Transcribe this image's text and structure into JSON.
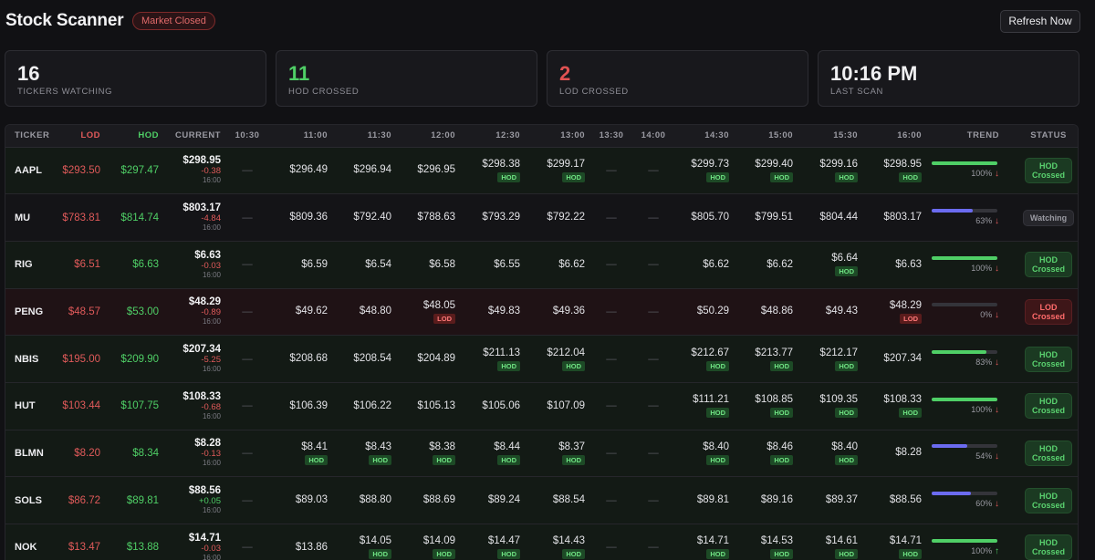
{
  "app": {
    "title": "Stock Scanner",
    "market_status": "Market Closed",
    "refresh_label": "Refresh Now"
  },
  "cards": [
    {
      "value": "16",
      "label": "Tickers Watching",
      "color": "default"
    },
    {
      "value": "11",
      "label": "HOD Crossed",
      "color": "green"
    },
    {
      "value": "2",
      "label": "LOD Crossed",
      "color": "red"
    },
    {
      "value": "10:16 PM",
      "label": "Last Scan",
      "color": "default"
    }
  ],
  "columns": [
    "TICKER",
    "LOD",
    "HOD",
    "CURRENT",
    "10:30",
    "11:00",
    "11:30",
    "12:00",
    "12:30",
    "13:00",
    "13:30",
    "14:00",
    "14:30",
    "15:00",
    "15:30",
    "16:00",
    "TREND",
    "STATUS"
  ],
  "empty_mark": "—",
  "rows": [
    {
      "ticker": "AAPL",
      "lod": "$293.50",
      "hod": "$297.47",
      "current": {
        "price": "$298.95",
        "change": "-0.38",
        "time": "16:00"
      },
      "slots": [
        null,
        {
          "p": "$296.49"
        },
        {
          "p": "$296.94"
        },
        {
          "p": "$296.95"
        },
        {
          "p": "$298.38",
          "tag": "HOD"
        },
        {
          "p": "$299.17",
          "tag": "HOD"
        },
        null,
        null,
        {
          "p": "$299.73",
          "tag": "HOD"
        },
        {
          "p": "$299.40",
          "tag": "HOD"
        },
        {
          "p": "$299.16",
          "tag": "HOD"
        },
        {
          "p": "$298.95",
          "tag": "HOD"
        }
      ],
      "trend": {
        "pct": 100,
        "label": "100%",
        "dir": "down",
        "color": "green"
      },
      "status": {
        "label": "HOD Crossed",
        "kind": "hod"
      }
    },
    {
      "ticker": "MU",
      "lod": "$783.81",
      "hod": "$814.74",
      "current": {
        "price": "$803.17",
        "change": "-4.84",
        "time": "16:00"
      },
      "slots": [
        null,
        {
          "p": "$809.36"
        },
        {
          "p": "$792.40"
        },
        {
          "p": "$788.63"
        },
        {
          "p": "$793.29"
        },
        {
          "p": "$792.22"
        },
        null,
        null,
        {
          "p": "$805.70"
        },
        {
          "p": "$799.51"
        },
        {
          "p": "$804.44"
        },
        {
          "p": "$803.17"
        }
      ],
      "trend": {
        "pct": 63,
        "label": "63%",
        "dir": "down",
        "color": "blue"
      },
      "status": {
        "label": "Watching",
        "kind": "watch"
      }
    },
    {
      "ticker": "RIG",
      "lod": "$6.51",
      "hod": "$6.63",
      "current": {
        "price": "$6.63",
        "change": "-0.03",
        "time": "16:00"
      },
      "slots": [
        null,
        {
          "p": "$6.59"
        },
        {
          "p": "$6.54"
        },
        {
          "p": "$6.58"
        },
        {
          "p": "$6.55"
        },
        {
          "p": "$6.62"
        },
        null,
        null,
        {
          "p": "$6.62"
        },
        {
          "p": "$6.62"
        },
        {
          "p": "$6.64",
          "tag": "HOD"
        },
        {
          "p": "$6.63"
        }
      ],
      "trend": {
        "pct": 100,
        "label": "100%",
        "dir": "down",
        "color": "green"
      },
      "status": {
        "label": "HOD Crossed",
        "kind": "hod"
      }
    },
    {
      "ticker": "PENG",
      "lod": "$48.57",
      "hod": "$53.00",
      "current": {
        "price": "$48.29",
        "change": "-0.89",
        "time": "16:00"
      },
      "slots": [
        null,
        {
          "p": "$49.62"
        },
        {
          "p": "$48.80"
        },
        {
          "p": "$48.05",
          "tag": "LOD"
        },
        {
          "p": "$49.83"
        },
        {
          "p": "$49.36"
        },
        null,
        null,
        {
          "p": "$50.29"
        },
        {
          "p": "$48.86"
        },
        {
          "p": "$49.43"
        },
        {
          "p": "$48.29",
          "tag": "LOD"
        }
      ],
      "trend": {
        "pct": 0,
        "label": "0%",
        "dir": "down",
        "color": "green"
      },
      "status": {
        "label": "LOD Crossed",
        "kind": "lod"
      }
    },
    {
      "ticker": "NBIS",
      "lod": "$195.00",
      "hod": "$209.90",
      "current": {
        "price": "$207.34",
        "change": "-5.25",
        "time": "16:00"
      },
      "slots": [
        null,
        {
          "p": "$208.68"
        },
        {
          "p": "$208.54"
        },
        {
          "p": "$204.89"
        },
        {
          "p": "$211.13",
          "tag": "HOD"
        },
        {
          "p": "$212.04",
          "tag": "HOD"
        },
        null,
        null,
        {
          "p": "$212.67",
          "tag": "HOD"
        },
        {
          "p": "$213.77",
          "tag": "HOD"
        },
        {
          "p": "$212.17",
          "tag": "HOD"
        },
        {
          "p": "$207.34"
        }
      ],
      "trend": {
        "pct": 83,
        "label": "83%",
        "dir": "down",
        "color": "green"
      },
      "status": {
        "label": "HOD Crossed",
        "kind": "hod"
      }
    },
    {
      "ticker": "HUT",
      "lod": "$103.44",
      "hod": "$107.75",
      "current": {
        "price": "$108.33",
        "change": "-0.68",
        "time": "16:00"
      },
      "slots": [
        null,
        {
          "p": "$106.39"
        },
        {
          "p": "$106.22"
        },
        {
          "p": "$105.13"
        },
        {
          "p": "$105.06"
        },
        {
          "p": "$107.09"
        },
        null,
        null,
        {
          "p": "$111.21",
          "tag": "HOD"
        },
        {
          "p": "$108.85",
          "tag": "HOD"
        },
        {
          "p": "$109.35",
          "tag": "HOD"
        },
        {
          "p": "$108.33",
          "tag": "HOD"
        }
      ],
      "trend": {
        "pct": 100,
        "label": "100%",
        "dir": "down",
        "color": "green"
      },
      "status": {
        "label": "HOD Crossed",
        "kind": "hod"
      }
    },
    {
      "ticker": "BLMN",
      "lod": "$8.20",
      "hod": "$8.34",
      "current": {
        "price": "$8.28",
        "change": "-0.13",
        "time": "16:00"
      },
      "slots": [
        null,
        {
          "p": "$8.41",
          "tag": "HOD"
        },
        {
          "p": "$8.43",
          "tag": "HOD"
        },
        {
          "p": "$8.38",
          "tag": "HOD"
        },
        {
          "p": "$8.44",
          "tag": "HOD"
        },
        {
          "p": "$8.37",
          "tag": "HOD"
        },
        null,
        null,
        {
          "p": "$8.40",
          "tag": "HOD"
        },
        {
          "p": "$8.46",
          "tag": "HOD"
        },
        {
          "p": "$8.40",
          "tag": "HOD"
        },
        {
          "p": "$8.28"
        }
      ],
      "trend": {
        "pct": 54,
        "label": "54%",
        "dir": "down",
        "color": "blue"
      },
      "status": {
        "label": "HOD Crossed",
        "kind": "hod"
      }
    },
    {
      "ticker": "SOLS",
      "lod": "$86.72",
      "hod": "$89.81",
      "current": {
        "price": "$88.56",
        "change": "+0.05",
        "time": "16:00"
      },
      "slots": [
        null,
        {
          "p": "$89.03"
        },
        {
          "p": "$88.80"
        },
        {
          "p": "$88.69"
        },
        {
          "p": "$89.24"
        },
        {
          "p": "$88.54"
        },
        null,
        null,
        {
          "p": "$89.81"
        },
        {
          "p": "$89.16"
        },
        {
          "p": "$89.37"
        },
        {
          "p": "$88.56"
        }
      ],
      "trend": {
        "pct": 60,
        "label": "60%",
        "dir": "down",
        "color": "blue"
      },
      "status": {
        "label": "HOD Crossed",
        "kind": "hod"
      }
    },
    {
      "ticker": "NOK",
      "lod": "$13.47",
      "hod": "$13.88",
      "current": {
        "price": "$14.71",
        "change": "-0.03",
        "time": "16:00"
      },
      "slots": [
        null,
        {
          "p": "$13.86"
        },
        {
          "p": "$14.05",
          "tag": "HOD"
        },
        {
          "p": "$14.09",
          "tag": "HOD"
        },
        {
          "p": "$14.47",
          "tag": "HOD"
        },
        {
          "p": "$14.43",
          "tag": "HOD"
        },
        null,
        null,
        {
          "p": "$14.71",
          "tag": "HOD"
        },
        {
          "p": "$14.53",
          "tag": "HOD"
        },
        {
          "p": "$14.61",
          "tag": "HOD"
        },
        {
          "p": "$14.71",
          "tag": "HOD"
        }
      ],
      "trend": {
        "pct": 100,
        "label": "100%",
        "dir": "up",
        "color": "green"
      },
      "status": {
        "label": "HOD Crossed",
        "kind": "hod"
      }
    }
  ]
}
